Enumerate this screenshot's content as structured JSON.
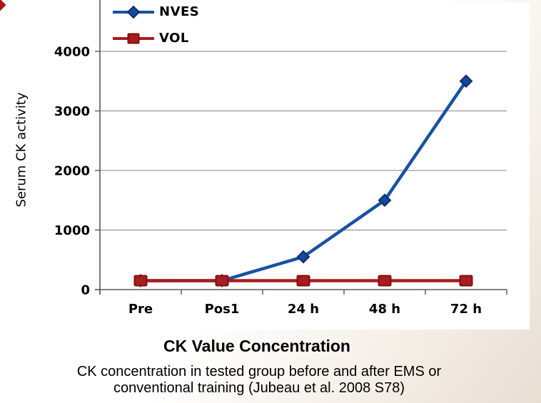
{
  "slide": {
    "title": "CK Value Concentration",
    "caption_line1": "CK concentration in tested group before and after EMS or",
    "caption_line2": "conventional training (Jubeau et al. 2008 S78)",
    "corner_accent_color": "#B01513"
  },
  "chart_data": {
    "type": "line",
    "title": "CK Value Concentration",
    "xlabel": "",
    "ylabel": "Serum CK activity",
    "categories": [
      "Pre",
      "Pos1",
      "24 h",
      "48 h",
      "72 h"
    ],
    "series": [
      {
        "name": "NVES",
        "values": [
          150,
          150,
          550,
          1500,
          3500
        ],
        "color": "#1752A0",
        "marker": "diamond",
        "marker_fill": "#1449A0",
        "marker_stroke": "#0B2F6B"
      },
      {
        "name": "VOL",
        "values": [
          150,
          150,
          150,
          150,
          150
        ],
        "color": "#A81D1D",
        "marker": "square",
        "marker_fill": "#A81D1D",
        "marker_stroke": "#7E0E0E"
      }
    ],
    "yticks": [
      0,
      1000,
      2000,
      3000,
      4000
    ],
    "ylim": [
      0,
      4860
    ],
    "grid": "horizontal",
    "gridline_color": "#808080",
    "axis_color": "#595959",
    "tick_label_color": "#000000",
    "legend_position": "top-left-inside"
  }
}
